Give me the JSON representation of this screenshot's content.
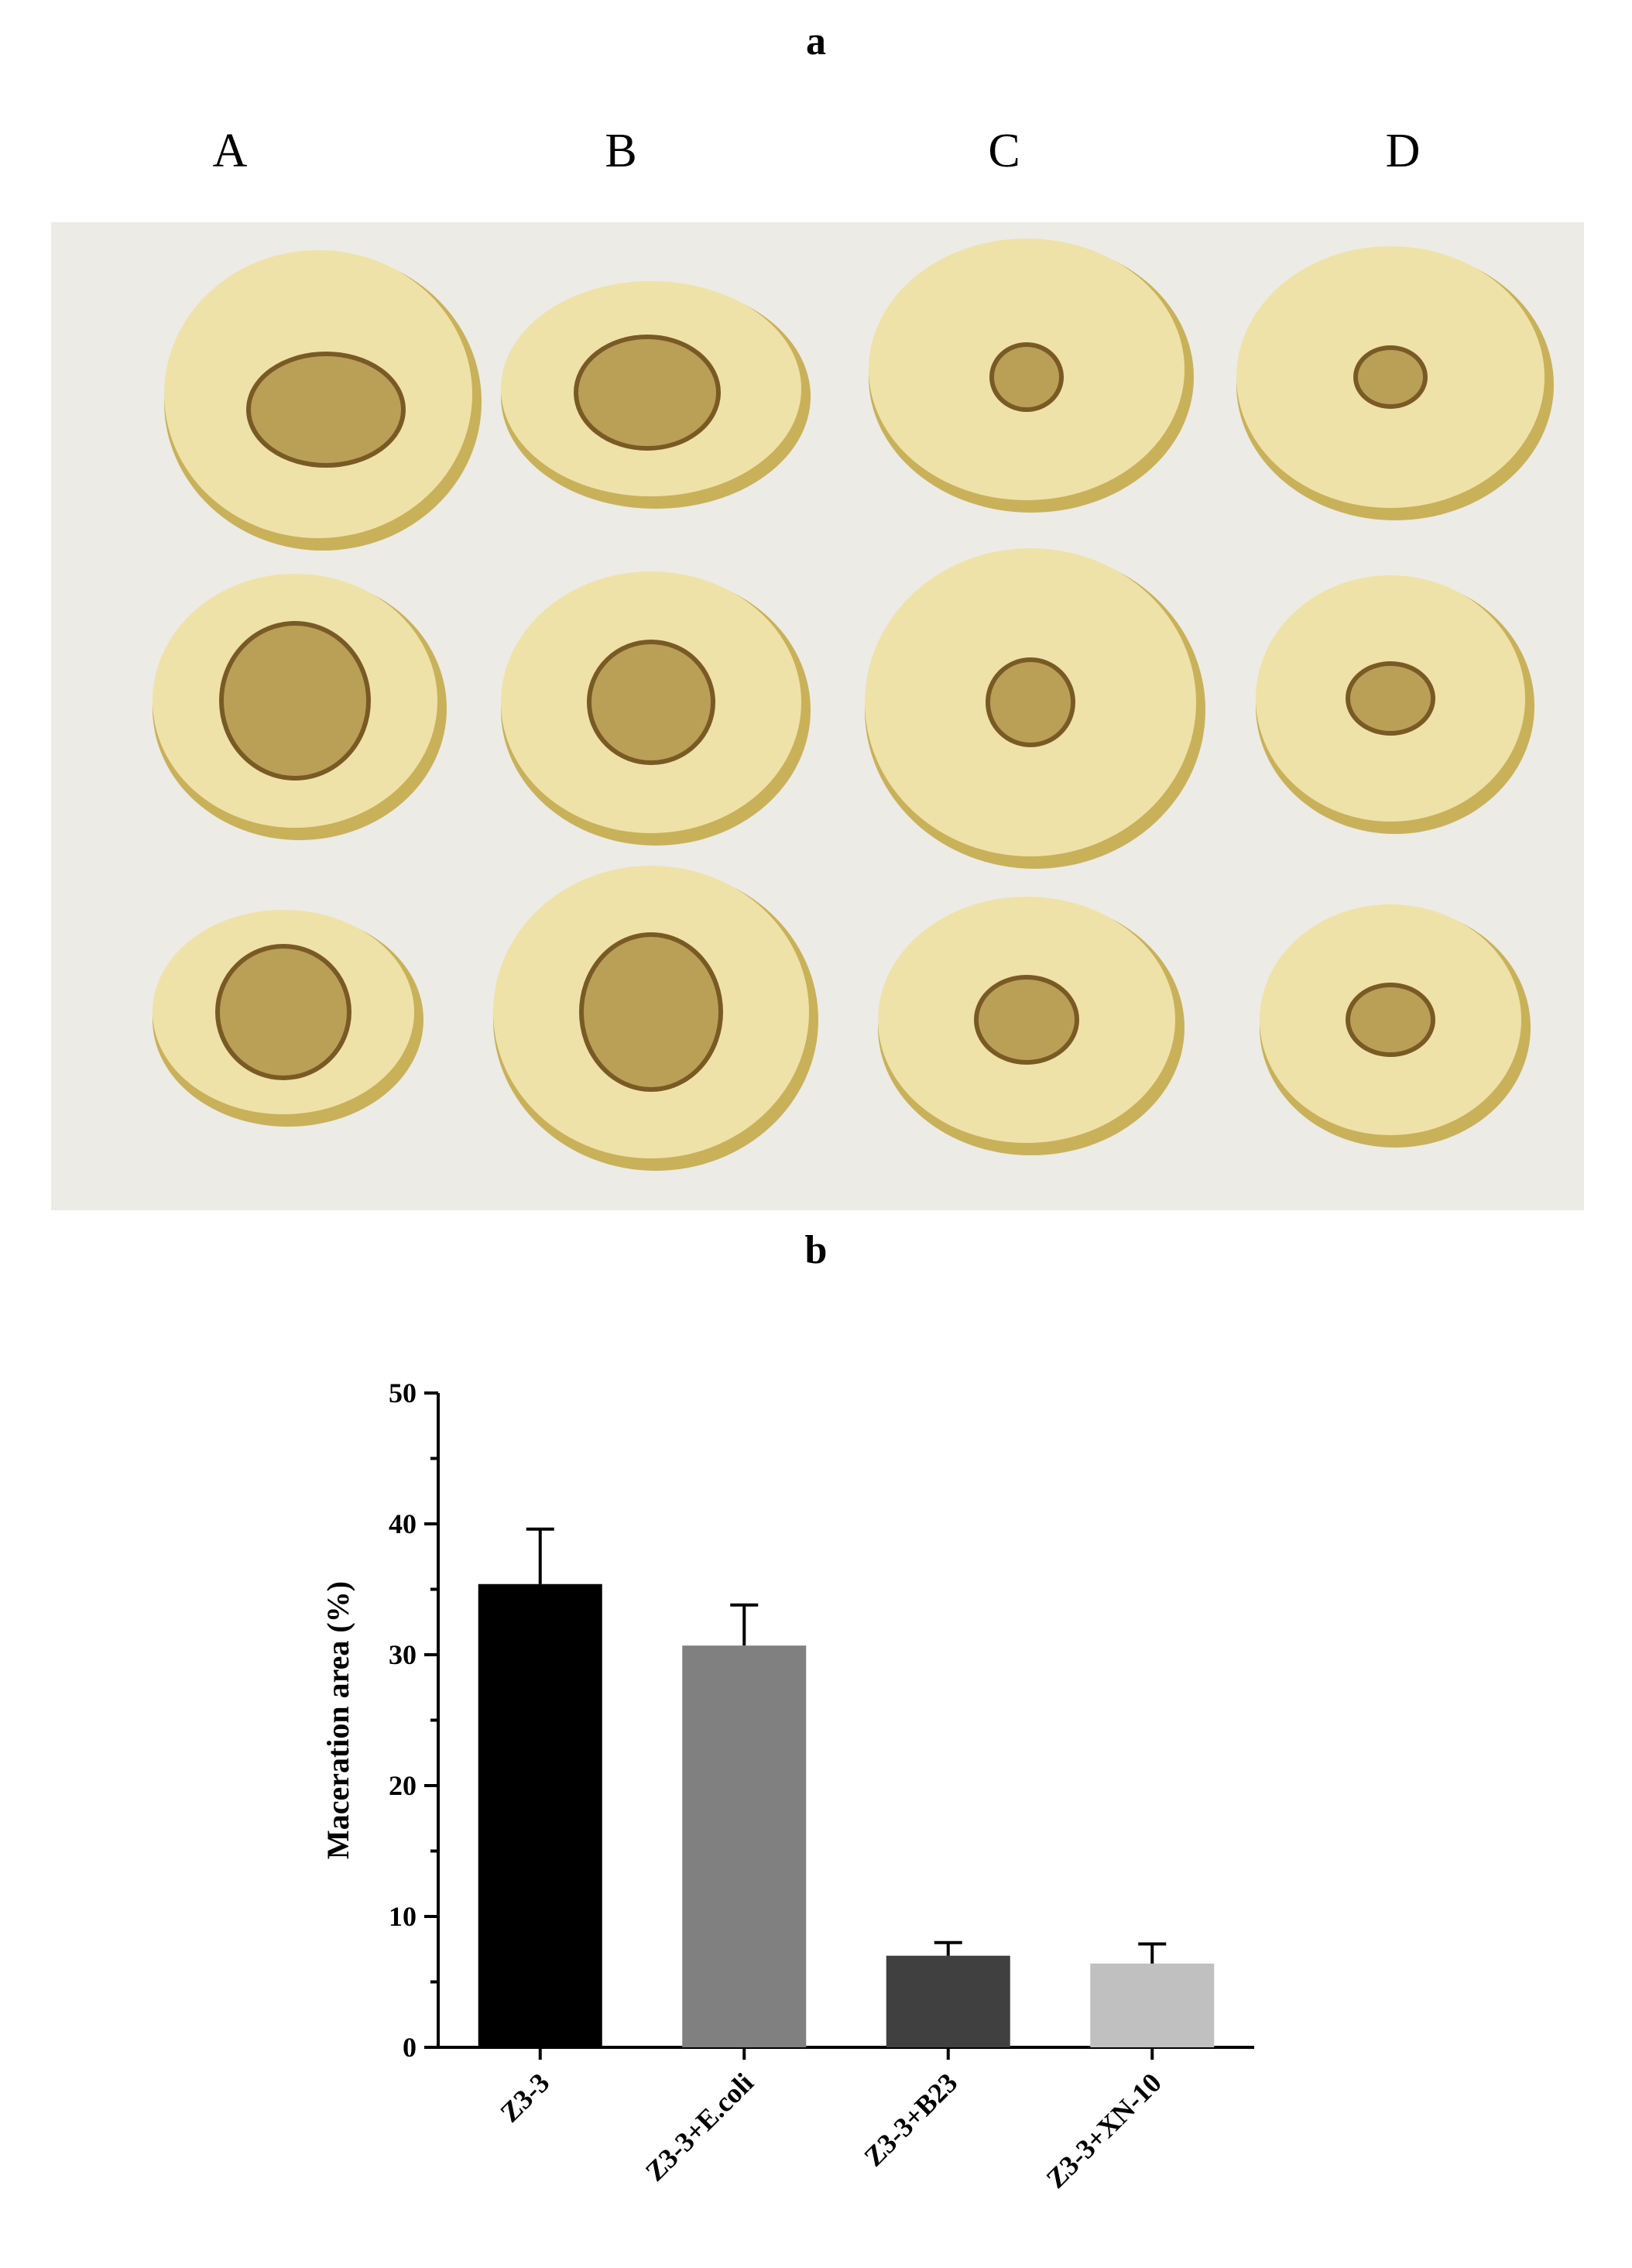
{
  "panels": {
    "a": "a",
    "b": "b"
  },
  "photo": {
    "columns": [
      "A",
      "B",
      "C",
      "D"
    ],
    "colors": {
      "background": "#ecebe6",
      "skin": "#d9c56e",
      "flesh": "#efe2a8",
      "lesion": "#a88a3c",
      "lesion_edge": "#7a5a24"
    }
  },
  "chart_data": {
    "type": "bar",
    "categories": [
      "Z3-3",
      "Z3-3+E.coli",
      "Z3-3+B23",
      "Z3-3+XN-10"
    ],
    "values": [
      35.4,
      30.7,
      7.0,
      6.4
    ],
    "errors": [
      4.2,
      3.1,
      1.0,
      1.5
    ],
    "colors": [
      "#000000",
      "#808080",
      "#404040",
      "#c0c0c0"
    ],
    "ylabel": "Maceration area (%)",
    "ylim": [
      0,
      50
    ],
    "yticks": [
      "0",
      "10",
      "20",
      "30",
      "40",
      "50"
    ],
    "grid": false
  }
}
